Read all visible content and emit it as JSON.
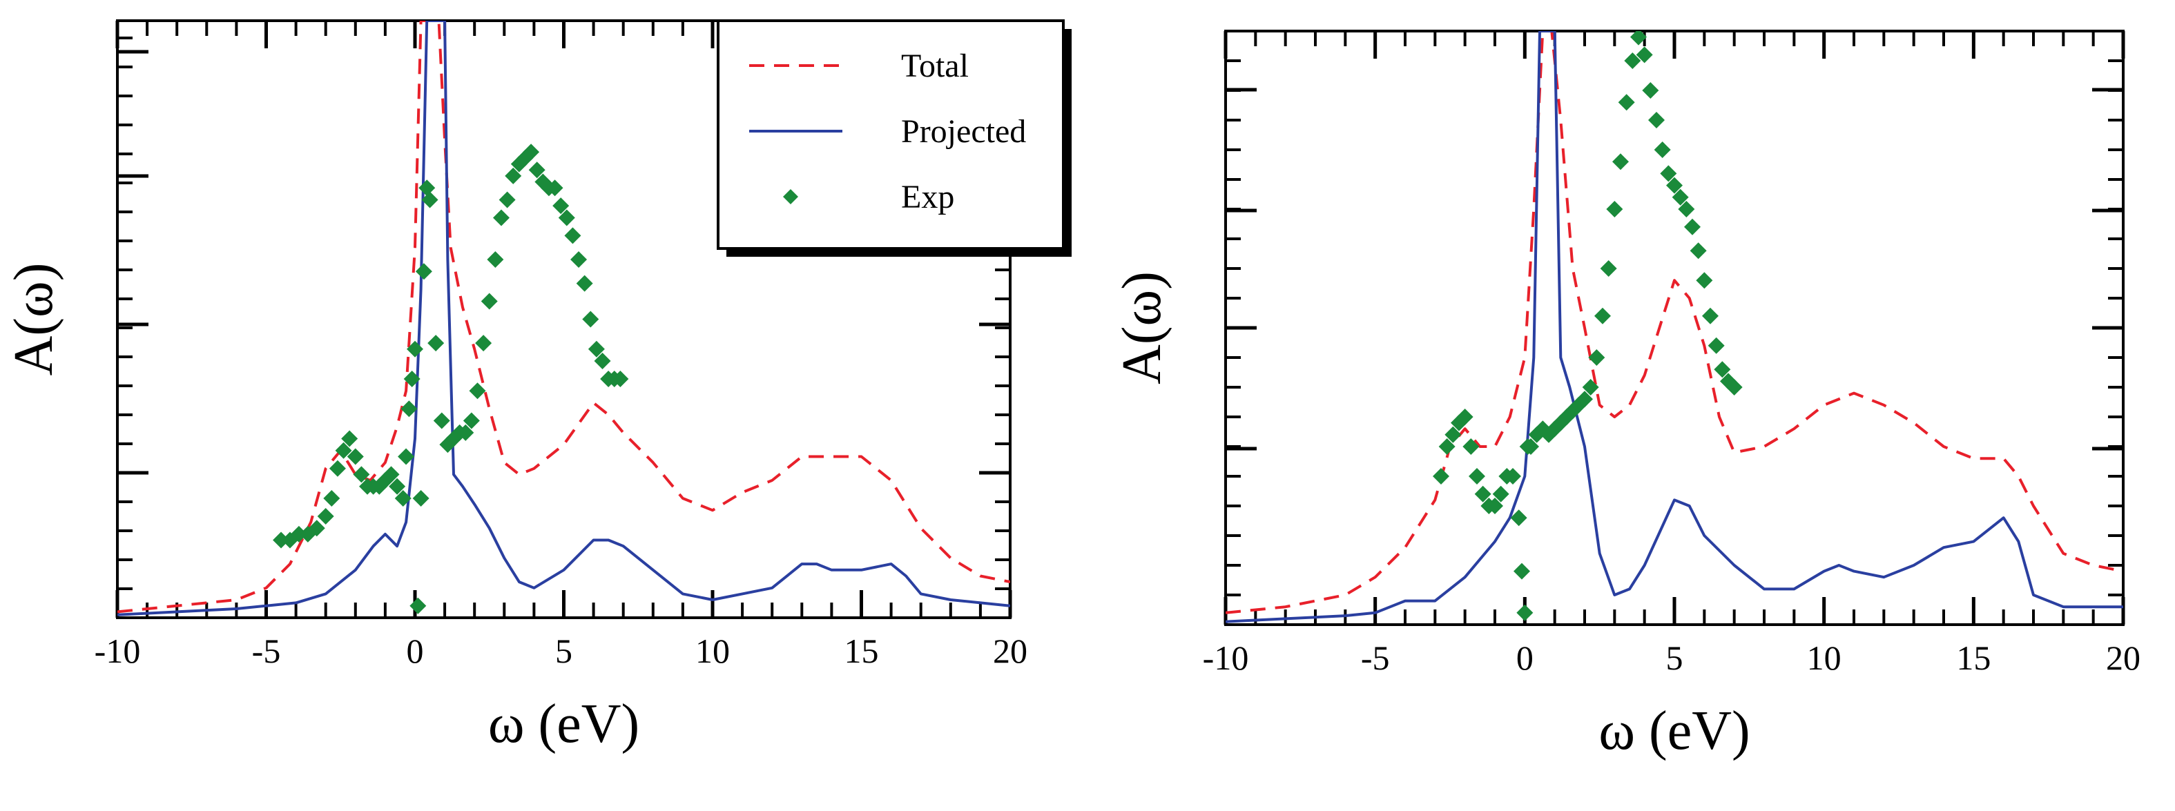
{
  "colors": {
    "total": "#e8202a",
    "projected": "#2a3fa0",
    "exp": "#1a8a3a",
    "frame": "#000000"
  },
  "chart_data": [
    {
      "type": "line",
      "panel": "left",
      "xlabel": "ω (eV)",
      "ylabel": "A(ω)",
      "xlim": [
        -10,
        20
      ],
      "ylim": [
        0,
        1
      ],
      "xticks": [
        -10,
        -5,
        0,
        5,
        10,
        15,
        20
      ],
      "xtick_labels": [
        "-10",
        "-5",
        "0",
        "5",
        "10",
        "15",
        "20"
      ],
      "legend": {
        "position": "top-right",
        "entries": [
          {
            "label": "Total",
            "style": "dashed-line",
            "series": "total"
          },
          {
            "label": "Projected",
            "style": "solid-line",
            "series": "projected"
          },
          {
            "label": "Exp",
            "style": "markers",
            "series": "exp"
          }
        ]
      },
      "series": [
        {
          "name": "Total",
          "key": "total",
          "style": "dashed",
          "x": [
            -10,
            -8,
            -6,
            -5,
            -4.2,
            -3.5,
            -3,
            -2.5,
            -2,
            -1.5,
            -1,
            -0.6,
            -0.3,
            0,
            0.2,
            0.4,
            0.6,
            0.8,
            1.0,
            1.2,
            1.6,
            2.0,
            2.5,
            3.0,
            3.5,
            4.0,
            5.0,
            6.0,
            6.5,
            7.0,
            8.0,
            9.0,
            10.0,
            11.0,
            12.0,
            13.0,
            14.0,
            15.0,
            16.0,
            17.0,
            18.0,
            19.0,
            20.0
          ],
          "y": [
            0.01,
            0.02,
            0.03,
            0.05,
            0.09,
            0.16,
            0.25,
            0.28,
            0.24,
            0.23,
            0.26,
            0.32,
            0.38,
            0.62,
            1.0,
            1.0,
            1.0,
            1.0,
            0.8,
            0.62,
            0.52,
            0.45,
            0.35,
            0.26,
            0.24,
            0.25,
            0.29,
            0.36,
            0.34,
            0.31,
            0.26,
            0.2,
            0.18,
            0.21,
            0.23,
            0.27,
            0.27,
            0.27,
            0.23,
            0.15,
            0.1,
            0.07,
            0.06
          ]
        },
        {
          "name": "Projected",
          "key": "projected",
          "style": "solid",
          "x": [
            -10,
            -8,
            -6,
            -5,
            -4,
            -3,
            -2,
            -1.4,
            -1,
            -0.6,
            -0.3,
            0,
            0.2,
            0.4,
            0.5,
            0.6,
            0.8,
            1.0,
            1.1,
            1.3,
            1.6,
            2.0,
            2.5,
            3.0,
            3.5,
            4.0,
            5.0,
            6.0,
            6.5,
            7.0,
            8.0,
            9.0,
            10.0,
            11.0,
            12.0,
            13.0,
            13.5,
            14.0,
            15.0,
            16.0,
            16.5,
            17.0,
            18.0,
            20.0
          ],
          "y": [
            0.005,
            0.01,
            0.015,
            0.02,
            0.025,
            0.04,
            0.08,
            0.12,
            0.14,
            0.12,
            0.16,
            0.3,
            0.55,
            1.0,
            1.0,
            1.0,
            1.0,
            1.0,
            0.6,
            0.24,
            0.22,
            0.19,
            0.15,
            0.1,
            0.06,
            0.05,
            0.08,
            0.13,
            0.13,
            0.12,
            0.08,
            0.04,
            0.03,
            0.04,
            0.05,
            0.09,
            0.09,
            0.08,
            0.08,
            0.09,
            0.07,
            0.04,
            0.03,
            0.02
          ]
        },
        {
          "name": "Exp",
          "key": "exp",
          "style": "markers",
          "x": [
            -4.5,
            -4.2,
            -3.9,
            -3.6,
            -3.3,
            -3.0,
            -2.8,
            -2.6,
            -2.4,
            -2.2,
            -2.0,
            -1.8,
            -1.6,
            -1.4,
            -1.2,
            -1.0,
            -0.8,
            -0.6,
            -0.4,
            -0.3,
            -0.2,
            -0.1,
            0.0,
            0.1,
            0.2,
            0.3,
            0.4,
            0.5,
            0.7,
            0.9,
            1.1,
            1.3,
            1.5,
            1.7,
            1.9,
            2.1,
            2.3,
            2.5,
            2.7,
            2.9,
            3.1,
            3.3,
            3.5,
            3.7,
            3.9,
            4.1,
            4.3,
            4.5,
            4.7,
            4.9,
            5.1,
            5.3,
            5.5,
            5.7,
            5.9,
            6.1,
            6.3,
            6.5,
            6.7,
            6.9
          ],
          "y": [
            0.13,
            0.13,
            0.14,
            0.14,
            0.15,
            0.17,
            0.2,
            0.25,
            0.28,
            0.3,
            0.27,
            0.24,
            0.22,
            0.22,
            0.22,
            0.23,
            0.24,
            0.22,
            0.2,
            0.27,
            0.35,
            0.4,
            0.45,
            0.02,
            0.2,
            0.58,
            0.72,
            0.7,
            0.46,
            0.33,
            0.29,
            0.3,
            0.31,
            0.31,
            0.33,
            0.38,
            0.46,
            0.53,
            0.6,
            0.67,
            0.7,
            0.74,
            0.76,
            0.77,
            0.78,
            0.75,
            0.73,
            0.72,
            0.72,
            0.69,
            0.67,
            0.64,
            0.6,
            0.56,
            0.5,
            0.45,
            0.43,
            0.4,
            0.4,
            0.4
          ]
        }
      ]
    },
    {
      "type": "line",
      "panel": "right",
      "xlabel": "ω (eV)",
      "ylabel": "A(ω)",
      "xlim": [
        -10,
        20
      ],
      "ylim": [
        0,
        1
      ],
      "xticks": [
        -10,
        -5,
        0,
        5,
        10,
        15,
        20
      ],
      "xtick_labels": [
        "-10",
        "-5",
        "0",
        "5",
        "10",
        "15",
        "20"
      ],
      "series": [
        {
          "name": "Total",
          "key": "total",
          "style": "dashed",
          "x": [
            -10,
            -8,
            -6,
            -5,
            -4,
            -3,
            -2.5,
            -2,
            -1.5,
            -1,
            -0.5,
            0,
            0.3,
            0.6,
            0.9,
            1.2,
            1.6,
            2.0,
            2.5,
            3.0,
            3.5,
            4.0,
            4.5,
            5.0,
            5.5,
            6.0,
            6.5,
            7.0,
            8.0,
            9.0,
            10.0,
            11.0,
            12.0,
            13.0,
            14.0,
            15.0,
            15.5,
            16.0,
            16.5,
            17.0,
            18.0,
            19.0,
            20.0
          ],
          "y": [
            0.02,
            0.03,
            0.05,
            0.08,
            0.13,
            0.21,
            0.3,
            0.33,
            0.3,
            0.3,
            0.35,
            0.45,
            0.7,
            1.0,
            1.0,
            0.85,
            0.6,
            0.5,
            0.37,
            0.35,
            0.37,
            0.42,
            0.5,
            0.58,
            0.55,
            0.47,
            0.35,
            0.29,
            0.3,
            0.33,
            0.37,
            0.39,
            0.37,
            0.34,
            0.3,
            0.28,
            0.28,
            0.28,
            0.25,
            0.2,
            0.12,
            0.1,
            0.09
          ]
        },
        {
          "name": "Projected",
          "key": "projected",
          "style": "solid",
          "x": [
            -10,
            -8,
            -6,
            -5,
            -4,
            -3,
            -2,
            -1,
            -0.5,
            0,
            0.3,
            0.5,
            0.6,
            0.8,
            1.0,
            1.2,
            1.5,
            2.0,
            2.5,
            3.0,
            3.5,
            4.0,
            5.0,
            5.5,
            6.0,
            7.0,
            8.0,
            9.0,
            10.0,
            10.5,
            11.0,
            12.0,
            13.0,
            14.0,
            15.0,
            16.0,
            16.5,
            17.0,
            18.0,
            20.0
          ],
          "y": [
            0.005,
            0.01,
            0.015,
            0.02,
            0.04,
            0.04,
            0.08,
            0.14,
            0.18,
            0.25,
            0.45,
            1.0,
            1.0,
            1.0,
            1.0,
            0.45,
            0.4,
            0.3,
            0.12,
            0.05,
            0.06,
            0.1,
            0.21,
            0.2,
            0.15,
            0.1,
            0.06,
            0.06,
            0.09,
            0.1,
            0.09,
            0.08,
            0.1,
            0.13,
            0.14,
            0.18,
            0.14,
            0.05,
            0.03,
            0.03
          ]
        },
        {
          "name": "Exp",
          "key": "exp",
          "style": "markers",
          "x": [
            -2.8,
            -2.6,
            -2.4,
            -2.2,
            -2.0,
            -1.8,
            -1.6,
            -1.4,
            -1.2,
            -1.0,
            -0.8,
            -0.6,
            -0.4,
            -0.2,
            -0.1,
            0.0,
            0.1,
            0.2,
            0.4,
            0.6,
            0.8,
            1.0,
            1.2,
            1.4,
            1.6,
            1.8,
            2.0,
            2.2,
            2.4,
            2.6,
            2.8,
            3.0,
            3.2,
            3.4,
            3.6,
            3.8,
            4.0,
            4.2,
            4.4,
            4.6,
            4.8,
            5.0,
            5.2,
            5.4,
            5.6,
            5.8,
            6.0,
            6.2,
            6.4,
            6.6,
            6.8,
            7.0
          ],
          "y": [
            0.25,
            0.3,
            0.32,
            0.34,
            0.35,
            0.3,
            0.25,
            0.22,
            0.2,
            0.2,
            0.22,
            0.25,
            0.25,
            0.18,
            0.09,
            0.02,
            0.3,
            0.3,
            0.32,
            0.33,
            0.32,
            0.33,
            0.34,
            0.35,
            0.36,
            0.37,
            0.38,
            0.4,
            0.45,
            0.52,
            0.6,
            0.7,
            0.78,
            0.88,
            0.95,
            0.99,
            0.96,
            0.9,
            0.85,
            0.8,
            0.76,
            0.74,
            0.72,
            0.7,
            0.67,
            0.63,
            0.58,
            0.52,
            0.47,
            0.43,
            0.41,
            0.4
          ]
        }
      ]
    }
  ]
}
